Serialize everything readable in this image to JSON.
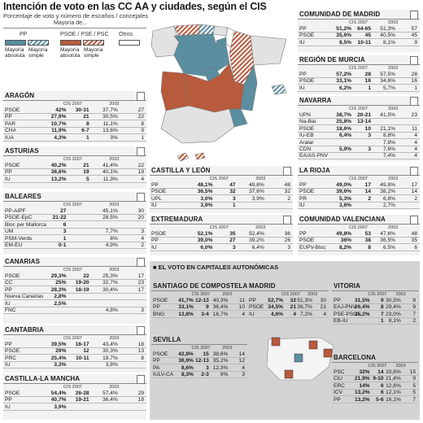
{
  "title": "Intención de voto en las CC AA y ciudades, según el CIS",
  "subtitle": "Porcentaje de voto y número de escaños / concejales",
  "legend": {
    "caption": "Mayoría de...",
    "groups": [
      "PP",
      "PSOE / PSE / PSC",
      "Otros"
    ],
    "labels": [
      "Mayoría absoluta",
      "Mayoría simple"
    ],
    "colors": {
      "pp": "#5a8ea0",
      "psoe": "#b85a3c",
      "otros": "#ffffff"
    }
  },
  "columns": {
    "cis": "CIS 2007",
    "prev": "2003"
  },
  "capitals_title": "EL VOTO EN CAPITALES AUTONÓMICAS",
  "chart_data": [
    {
      "type": "table",
      "title": "ARAGÓN",
      "rows": [
        {
          "party": "PSOE",
          "cis_pct": "42%",
          "cis_seats": "30-31",
          "prev_pct": "37,7%",
          "prev_seats": "27"
        },
        {
          "party": "PP",
          "cis_pct": "27,9%",
          "cis_seats": "21",
          "prev_pct": "30,5%",
          "prev_seats": "22"
        },
        {
          "party": "PAR",
          "cis_pct": "10,7%",
          "cis_seats": "8",
          "prev_pct": "11,1%",
          "prev_seats": "8"
        },
        {
          "party": "CHA",
          "cis_pct": "11,9%",
          "cis_seats": "6-7",
          "prev_pct": "13,6%",
          "prev_seats": "9"
        },
        {
          "party": "IUA",
          "cis_pct": "4,3%",
          "cis_seats": "1",
          "prev_pct": "3%",
          "prev_seats": "1"
        }
      ]
    },
    {
      "type": "table",
      "title": "ASTURIAS",
      "rows": [
        {
          "party": "PSOE",
          "cis_pct": "40,2%",
          "cis_seats": "21",
          "prev_pct": "41,4%",
          "prev_seats": "22"
        },
        {
          "party": "PP",
          "cis_pct": "36,6%",
          "cis_seats": "19",
          "prev_pct": "40,1%",
          "prev_seats": "19"
        },
        {
          "party": "IU",
          "cis_pct": "13,2%",
          "cis_seats": "5",
          "prev_pct": "11,3%",
          "prev_seats": "4"
        }
      ]
    },
    {
      "type": "table",
      "title": "BALEARES",
      "rows": [
        {
          "party": "PP-AIPF",
          "cis_pct": "27",
          "cis_seats": "",
          "prev_pct": "45,1%",
          "prev_seats": "30"
        },
        {
          "party": "PSOE-EpC",
          "cis_pct": "21-22",
          "cis_seats": "",
          "prev_pct": "28,5%",
          "prev_seats": "20"
        },
        {
          "party": "Bloc per Mallorca",
          "cis_pct": "6",
          "cis_seats": "",
          "prev_pct": "",
          "prev_seats": ""
        },
        {
          "party": "UM",
          "cis_pct": "3",
          "cis_seats": "",
          "prev_pct": "7,7%",
          "prev_seats": "3"
        },
        {
          "party": "PSM-Verds",
          "cis_pct": "1",
          "cis_seats": "",
          "prev_pct": "8%",
          "prev_seats": "4"
        },
        {
          "party": "EM-EU",
          "cis_pct": "0-1",
          "cis_seats": "",
          "prev_pct": "4,9%",
          "prev_seats": "2"
        }
      ]
    },
    {
      "type": "table",
      "title": "CANARIAS",
      "rows": [
        {
          "party": "PSOE",
          "cis_pct": "29,3%",
          "cis_seats": "22",
          "prev_pct": "25,3%",
          "prev_seats": "17"
        },
        {
          "party": "CC",
          "cis_pct": "25%",
          "cis_seats": "19-20",
          "prev_pct": "32,7%",
          "prev_seats": "23"
        },
        {
          "party": "PP",
          "cis_pct": "28,3%",
          "cis_seats": "18-19",
          "prev_pct": "30,4%",
          "prev_seats": "17"
        },
        {
          "party": "Nueva Canarias",
          "cis_pct": "2,8%",
          "cis_seats": "",
          "prev_pct": "",
          "prev_seats": ""
        },
        {
          "party": "IU",
          "cis_pct": "2,5%",
          "cis_seats": "",
          "prev_pct": "",
          "prev_seats": ""
        },
        {
          "party": "FNC",
          "cis_pct": "",
          "cis_seats": "",
          "prev_pct": "4,8%",
          "prev_seats": "3"
        }
      ]
    },
    {
      "type": "table",
      "title": "CANTABRIA",
      "rows": [
        {
          "party": "PP",
          "cis_pct": "39,5%",
          "cis_seats": "16-17",
          "prev_pct": "43,4%",
          "prev_seats": "18"
        },
        {
          "party": "PSOE",
          "cis_pct": "29%",
          "cis_seats": "12",
          "prev_pct": "30,3%",
          "prev_seats": "13"
        },
        {
          "party": "PRC",
          "cis_pct": "25,4%",
          "cis_seats": "10-11",
          "prev_pct": "19,7%",
          "prev_seats": "8"
        },
        {
          "party": "IU",
          "cis_pct": "3,3%",
          "cis_seats": "",
          "prev_pct": "3,8%",
          "prev_seats": ""
        }
      ]
    },
    {
      "type": "table",
      "title": "CASTILLA-LA MANCHA",
      "rows": [
        {
          "party": "PSOE",
          "cis_pct": "54,4%",
          "cis_seats": "26-28",
          "prev_pct": "57,4%",
          "prev_seats": "29"
        },
        {
          "party": "PP",
          "cis_pct": "40,7%",
          "cis_seats": "19-21",
          "prev_pct": "36,4%",
          "prev_seats": "18"
        },
        {
          "party": "IU",
          "cis_pct": "3,9%",
          "cis_seats": "",
          "prev_pct": "",
          "prev_seats": ""
        }
      ]
    },
    {
      "type": "table",
      "title": "CASTILLA Y LEÓN",
      "rows": [
        {
          "party": "PP",
          "cis_pct": "48,1%",
          "cis_seats": "47",
          "prev_pct": "49,6%",
          "prev_seats": "48"
        },
        {
          "party": "PSOE",
          "cis_pct": "36,5%",
          "cis_seats": "32",
          "prev_pct": "37,6%",
          "prev_seats": "32"
        },
        {
          "party": "UPL",
          "cis_pct": "3,0%",
          "cis_seats": "3",
          "prev_pct": "3,9%",
          "prev_seats": "2"
        },
        {
          "party": "IU",
          "cis_pct": "3,9%",
          "cis_seats": "1",
          "prev_pct": "",
          "prev_seats": ""
        }
      ]
    },
    {
      "type": "table",
      "title": "EXTREMADURA",
      "rows": [
        {
          "party": "PSOE",
          "cis_pct": "52,1%",
          "cis_seats": "35",
          "prev_pct": "52,4%",
          "prev_seats": "36"
        },
        {
          "party": "PP",
          "cis_pct": "39,0%",
          "cis_seats": "27",
          "prev_pct": "39,2%",
          "prev_seats": "26"
        },
        {
          "party": "IU",
          "cis_pct": "6,0%",
          "cis_seats": "3",
          "prev_pct": "6,4%",
          "prev_seats": "3"
        }
      ]
    },
    {
      "type": "table",
      "title": "COMUNIDAD DE MADRID",
      "rows": [
        {
          "party": "PP",
          "cis_pct": "51,2%",
          "cis_seats": "64-65",
          "prev_pct": "51,3%",
          "prev_seats": "57"
        },
        {
          "party": "PSOE",
          "cis_pct": "35,6%",
          "cis_seats": "45",
          "prev_pct": "40,5%",
          "prev_seats": "45"
        },
        {
          "party": "IU",
          "cis_pct": "8,5%",
          "cis_seats": "10-11",
          "prev_pct": "8,1%",
          "prev_seats": "9"
        }
      ]
    },
    {
      "type": "table",
      "title": "REGIÓN DE MURCIA",
      "rows": [
        {
          "party": "PP",
          "cis_pct": "57,2%",
          "cis_seats": "28",
          "prev_pct": "57,5%",
          "prev_seats": "28"
        },
        {
          "party": "PSOE",
          "cis_pct": "33,1%",
          "cis_seats": "16",
          "prev_pct": "34,6%",
          "prev_seats": "16"
        },
        {
          "party": "IU",
          "cis_pct": "6,2%",
          "cis_seats": "1",
          "prev_pct": "5,7%",
          "prev_seats": "1"
        }
      ]
    },
    {
      "type": "table",
      "title": "NAVARRA",
      "rows": [
        {
          "party": "UPN",
          "cis_pct": "38,7%",
          "cis_seats": "20-21",
          "prev_pct": "41,5%",
          "prev_seats": "23"
        },
        {
          "party": "Na-Bai",
          "cis_pct": "25,8%",
          "cis_seats": "13-14",
          "prev_pct": "",
          "prev_seats": ""
        },
        {
          "party": "PSOE",
          "cis_pct": "18,6%",
          "cis_seats": "10",
          "prev_pct": "21,1%",
          "prev_seats": "11"
        },
        {
          "party": "IU-EB",
          "cis_pct": "6,4%",
          "cis_seats": "3",
          "prev_pct": "8,8%",
          "prev_seats": "4"
        },
        {
          "party": "Aralar",
          "cis_pct": "",
          "cis_seats": "",
          "prev_pct": "7,8%",
          "prev_seats": "4"
        },
        {
          "party": "CDN",
          "cis_pct": "5,9%",
          "cis_seats": "3",
          "prev_pct": "7,6%",
          "prev_seats": "4"
        },
        {
          "party": "EA/AS-PNV",
          "cis_pct": "",
          "cis_seats": "",
          "prev_pct": "7,4%",
          "prev_seats": "4"
        }
      ]
    },
    {
      "type": "table",
      "title": "LA RIOJA",
      "rows": [
        {
          "party": "PP",
          "cis_pct": "49,0%",
          "cis_seats": "17",
          "prev_pct": "49,8%",
          "prev_seats": "17"
        },
        {
          "party": "PSOE",
          "cis_pct": "39,6%",
          "cis_seats": "14",
          "prev_pct": "38,2%",
          "prev_seats": "14"
        },
        {
          "party": "PR",
          "cis_pct": "5,3%",
          "cis_seats": "2",
          "prev_pct": "6,8%",
          "prev_seats": "2"
        },
        {
          "party": "IU",
          "cis_pct": "3,6%",
          "cis_seats": "",
          "prev_pct": "2,7%",
          "prev_seats": ""
        }
      ]
    },
    {
      "type": "table",
      "title": "COMUNIDAD VALENCIANA",
      "rows": [
        {
          "party": "PP",
          "cis_pct": "49,8%",
          "cis_seats": "53",
          "prev_pct": "47,6%",
          "prev_seats": "48"
        },
        {
          "party": "PSOE",
          "cis_pct": "36%",
          "cis_seats": "38",
          "prev_pct": "36,5%",
          "prev_seats": "35"
        },
        {
          "party": "EUPV-Bloc",
          "cis_pct": "8,2%",
          "cis_seats": "8",
          "prev_pct": "6,5%",
          "prev_seats": "6"
        }
      ]
    },
    {
      "type": "table",
      "title": "SANTIAGO DE COMPOSTELA",
      "rows": [
        {
          "party": "PSOE",
          "cis_pct": "41,7%",
          "cis_seats": "12-13",
          "prev_pct": "40,3%",
          "prev_seats": "11"
        },
        {
          "party": "PP",
          "cis_pct": "33,1%",
          "cis_seats": "9",
          "prev_pct": "36,4%",
          "prev_seats": "10"
        },
        {
          "party": "BNG",
          "cis_pct": "13,8%",
          "cis_seats": "3-4",
          "prev_pct": "16,7%",
          "prev_seats": "4"
        }
      ]
    },
    {
      "type": "table",
      "title": "MADRID",
      "rows": [
        {
          "party": "PP",
          "cis_pct": "52,7%",
          "cis_seats": "32",
          "prev_pct": "51,3%",
          "prev_seats": "30"
        },
        {
          "party": "PSOE",
          "cis_pct": "34,5%",
          "cis_seats": "21",
          "prev_pct": "36,7%",
          "prev_seats": "21"
        },
        {
          "party": "IU",
          "cis_pct": "4,6%",
          "cis_seats": "4",
          "prev_pct": "7,2%",
          "prev_seats": "4"
        }
      ]
    },
    {
      "type": "table",
      "title": "VITORIA",
      "rows": [
        {
          "party": "PP",
          "cis_pct": "31,5%",
          "cis_seats": "9",
          "prev_pct": "30,5%",
          "prev_seats": "9"
        },
        {
          "party": "EAJ-PNV",
          "cis_pct": "26,4%",
          "cis_seats": "8",
          "prev_pct": "29,4%",
          "prev_seats": "9"
        },
        {
          "party": "PSE-PSOE",
          "cis_pct": "25,2%",
          "cis_seats": "7",
          "prev_pct": "23,0%",
          "prev_seats": "7"
        },
        {
          "party": "EB-IU",
          "cis_pct": "",
          "cis_seats": "1",
          "prev_pct": "8,1%",
          "prev_seats": "2"
        }
      ]
    },
    {
      "type": "table",
      "title": "SEVILLA",
      "rows": [
        {
          "party": "PSOE",
          "cis_pct": "42,8%",
          "cis_seats": "15",
          "prev_pct": "38,6%",
          "prev_seats": "14"
        },
        {
          "party": "PP",
          "cis_pct": "36,9%",
          "cis_seats": "12-13",
          "prev_pct": "35,2%",
          "prev_seats": "12"
        },
        {
          "party": "PA",
          "cis_pct": "8,6%",
          "cis_seats": "3",
          "prev_pct": "12,3%",
          "prev_seats": "4"
        },
        {
          "party": "IULV-CA",
          "cis_pct": "8,3%",
          "cis_seats": "2-3",
          "prev_pct": "9%",
          "prev_seats": "3"
        }
      ]
    },
    {
      "type": "table",
      "title": "BARCELONA",
      "rows": [
        {
          "party": "PSC",
          "cis_pct": "32%",
          "cis_seats": "14",
          "prev_pct": "33,6%",
          "prev_seats": "15"
        },
        {
          "party": "CiU",
          "cis_pct": "21,9%",
          "cis_seats": "9-10",
          "prev_pct": "21,4%",
          "prev_seats": "9"
        },
        {
          "party": "ERC",
          "cis_pct": "14%",
          "cis_seats": "6",
          "prev_pct": "12,6%",
          "prev_seats": "5"
        },
        {
          "party": "ICV",
          "cis_pct": "13,2%",
          "cis_seats": "6",
          "prev_pct": "12,1%",
          "prev_seats": "5"
        },
        {
          "party": "PP",
          "cis_pct": "13,2%",
          "cis_seats": "5-6",
          "prev_pct": "16,1%",
          "prev_seats": "7"
        }
      ]
    }
  ]
}
